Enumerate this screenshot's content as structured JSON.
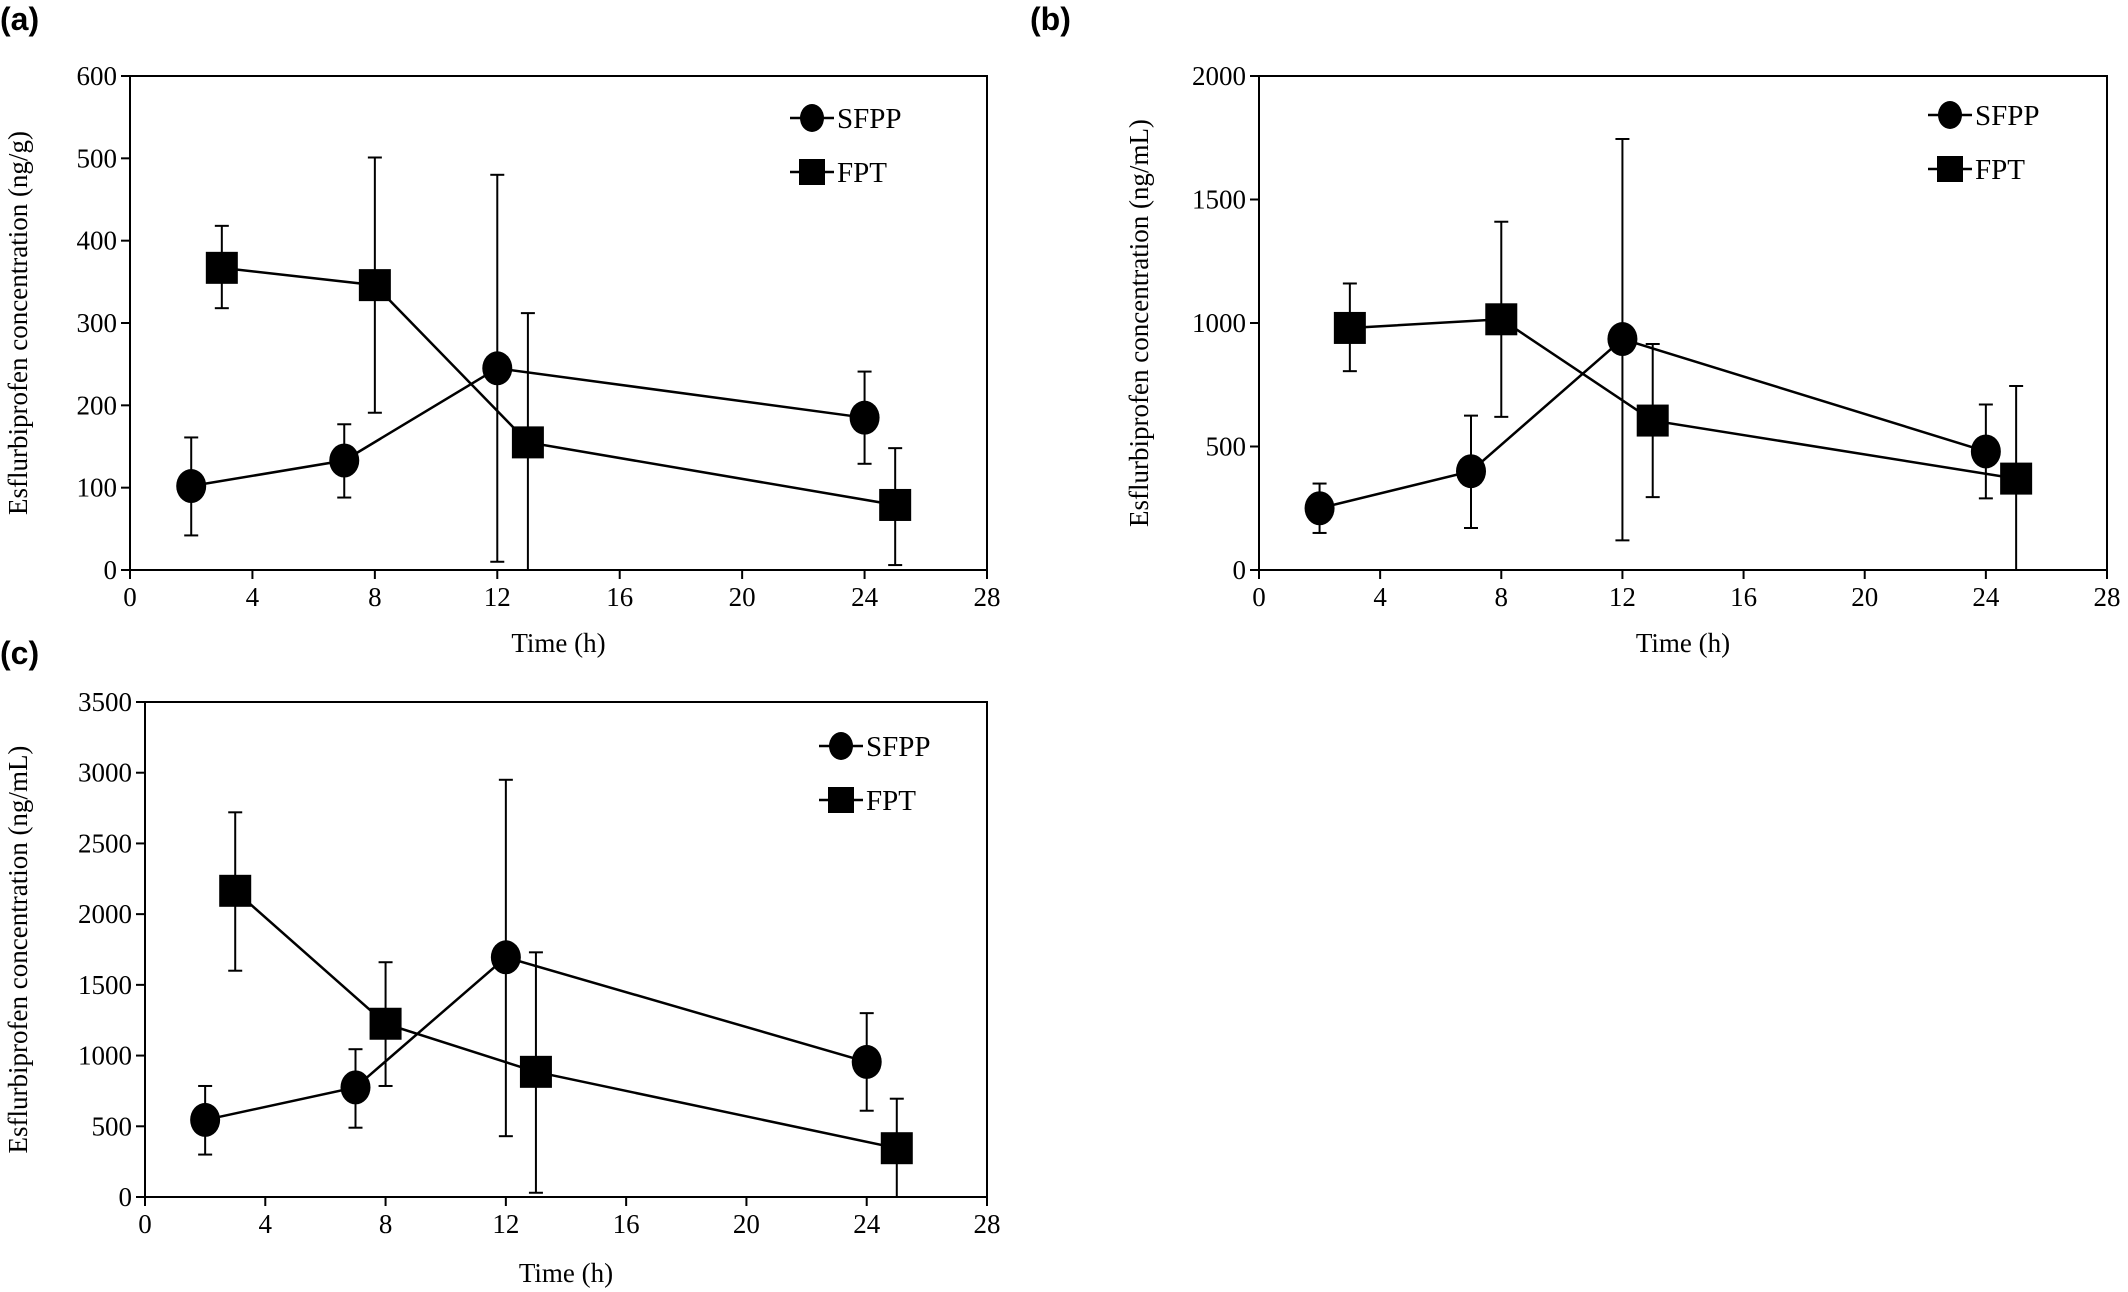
{
  "chart_data": [
    {
      "panel_label": "(a)",
      "type": "line",
      "xlabel": "Time (h)",
      "ylabel": "Esflurbiprofen concentration (ng/g)",
      "xlim": [
        0,
        28
      ],
      "ylim": [
        0,
        600
      ],
      "xticks": [
        0,
        4,
        8,
        12,
        16,
        20,
        24,
        28
      ],
      "yticks": [
        0,
        100,
        200,
        300,
        400,
        500,
        600
      ],
      "legend_placement": "top-right",
      "grid": false,
      "series": [
        {
          "name": "SFPP",
          "marker": "circle",
          "x": [
            2,
            7,
            12,
            24
          ],
          "y": [
            102,
            133,
            245,
            185
          ],
          "err_upper": [
            161,
            177,
            480,
            241
          ],
          "err_lower": [
            42,
            88,
            10,
            129
          ]
        },
        {
          "name": "FPT",
          "marker": "square",
          "x": [
            3,
            8,
            13,
            25
          ],
          "y": [
            367,
            346,
            155,
            79
          ],
          "err_upper": [
            418,
            501,
            312,
            148
          ],
          "err_lower": [
            318,
            191,
            0,
            6
          ]
        }
      ]
    },
    {
      "panel_label": "(b)",
      "type": "line",
      "xlabel": "Time (h)",
      "ylabel": "Esflurbiprofen concentration (ng/mL)",
      "xlim": [
        0,
        28
      ],
      "ylim": [
        0,
        2000
      ],
      "xticks": [
        0,
        4,
        8,
        12,
        16,
        20,
        24,
        28
      ],
      "yticks": [
        0,
        500,
        1000,
        1500,
        2000
      ],
      "legend_placement": "top-right",
      "grid": false,
      "series": [
        {
          "name": "SFPP",
          "marker": "circle",
          "x": [
            2,
            7,
            12,
            24
          ],
          "y": [
            250,
            400,
            935,
            480
          ],
          "err_upper": [
            350,
            625,
            1745,
            670
          ],
          "err_lower": [
            150,
            170,
            120,
            290
          ]
        },
        {
          "name": "FPT",
          "marker": "square",
          "x": [
            3,
            8,
            13,
            25
          ],
          "y": [
            980,
            1015,
            605,
            370
          ],
          "err_upper": [
            1160,
            1410,
            915,
            745
          ],
          "err_lower": [
            805,
            620,
            295,
            0
          ]
        }
      ]
    },
    {
      "panel_label": "(c)",
      "type": "line",
      "xlabel": "Time (h)",
      "ylabel": "Esflurbiprofen concentration (ng/mL)",
      "xlim": [
        0,
        28
      ],
      "ylim": [
        0,
        3500
      ],
      "xticks": [
        0,
        4,
        8,
        12,
        16,
        20,
        24,
        28
      ],
      "yticks": [
        0,
        500,
        1000,
        1500,
        2000,
        2500,
        3000,
        3500
      ],
      "legend_placement": "top-right",
      "grid": false,
      "series": [
        {
          "name": "SFPP",
          "marker": "circle",
          "x": [
            2,
            7,
            12,
            24
          ],
          "y": [
            545,
            775,
            1695,
            955
          ],
          "err_upper": [
            785,
            1045,
            2950,
            1300
          ],
          "err_lower": [
            300,
            490,
            430,
            610
          ]
        },
        {
          "name": "FPT",
          "marker": "square",
          "x": [
            3,
            8,
            13,
            25
          ],
          "y": [
            2165,
            1225,
            885,
            345
          ],
          "err_upper": [
            2720,
            1660,
            1730,
            695
          ],
          "err_lower": [
            1600,
            785,
            30,
            0
          ]
        }
      ]
    }
  ]
}
